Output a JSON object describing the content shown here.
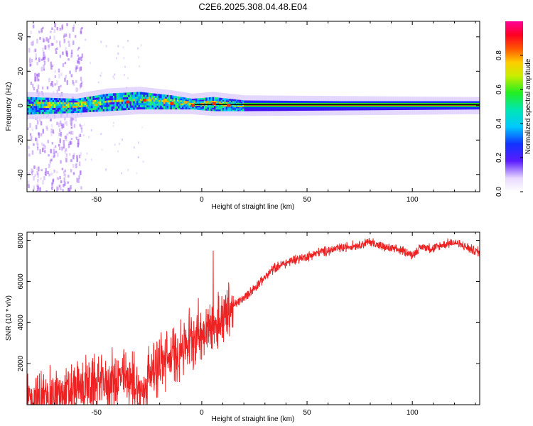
{
  "figure_title": "C2E6.2025.308.04.48.E04",
  "chart_data": [
    {
      "type": "heatmap",
      "name": "spectrogram",
      "xlabel": "Height of straight line (km)",
      "ylabel": "Frequency (Hz)",
      "xlim": [
        -83,
        132
      ],
      "ylim": [
        -50,
        49
      ],
      "xticks": [
        -50,
        0,
        50,
        100
      ],
      "yticks": [
        -40,
        -20,
        0,
        20,
        40
      ],
      "description_band": [
        {
          "x": -83,
          "center": 0,
          "halfwidth": 5
        },
        {
          "x": -60,
          "center": 0,
          "halfwidth": 4
        },
        {
          "x": -45,
          "center": 2,
          "halfwidth": 5
        },
        {
          "x": -30,
          "center": 3,
          "halfwidth": 5
        },
        {
          "x": -15,
          "center": 2,
          "halfwidth": 4
        },
        {
          "x": -5,
          "center": 1,
          "halfwidth": 3
        },
        {
          "x": 5,
          "center": 1,
          "halfwidth": 4
        },
        {
          "x": 20,
          "center": 0,
          "halfwidth": 3
        },
        {
          "x": 132,
          "center": 0,
          "halfwidth": 2
        }
      ],
      "colorbar": {
        "label": "Normalized spectral amplitude",
        "range": [
          0.0,
          1.0
        ],
        "ticks": [
          "0.0",
          "0.2",
          "0.4",
          "0.6",
          "0.8"
        ],
        "tick_values": [
          0.0,
          0.2,
          0.4,
          0.6,
          0.8
        ]
      }
    },
    {
      "type": "line",
      "name": "snr",
      "xlabel": "Height of straight line (km)",
      "ylabel": "SNR (10 * v/v)",
      "xlim": [
        -83,
        132
      ],
      "ylim": [
        0,
        8400
      ],
      "xticks": [
        -50,
        0,
        50,
        100
      ],
      "yticks": [
        2000,
        4000,
        6000,
        8000
      ],
      "color": "#ee2222",
      "x": [
        -83,
        -75,
        -65,
        -55,
        -45,
        -38,
        -33,
        -28,
        -25,
        -20,
        -15,
        -10,
        -5,
        0,
        5,
        10,
        15,
        20,
        25,
        30,
        35,
        40,
        45,
        50,
        55,
        60,
        65,
        70,
        75,
        80,
        85,
        90,
        95,
        100,
        105,
        110,
        115,
        120,
        125,
        132
      ],
      "y": [
        200,
        300,
        500,
        900,
        1100,
        1300,
        1200,
        500,
        1600,
        2000,
        2300,
        2700,
        3200,
        3600,
        3900,
        4300,
        4800,
        5200,
        5700,
        6200,
        6700,
        6900,
        7100,
        7200,
        7400,
        7500,
        7600,
        7700,
        7800,
        7950,
        7700,
        7600,
        7500,
        7300,
        7700,
        7600,
        7800,
        7900,
        7700,
        7400
      ]
    }
  ]
}
